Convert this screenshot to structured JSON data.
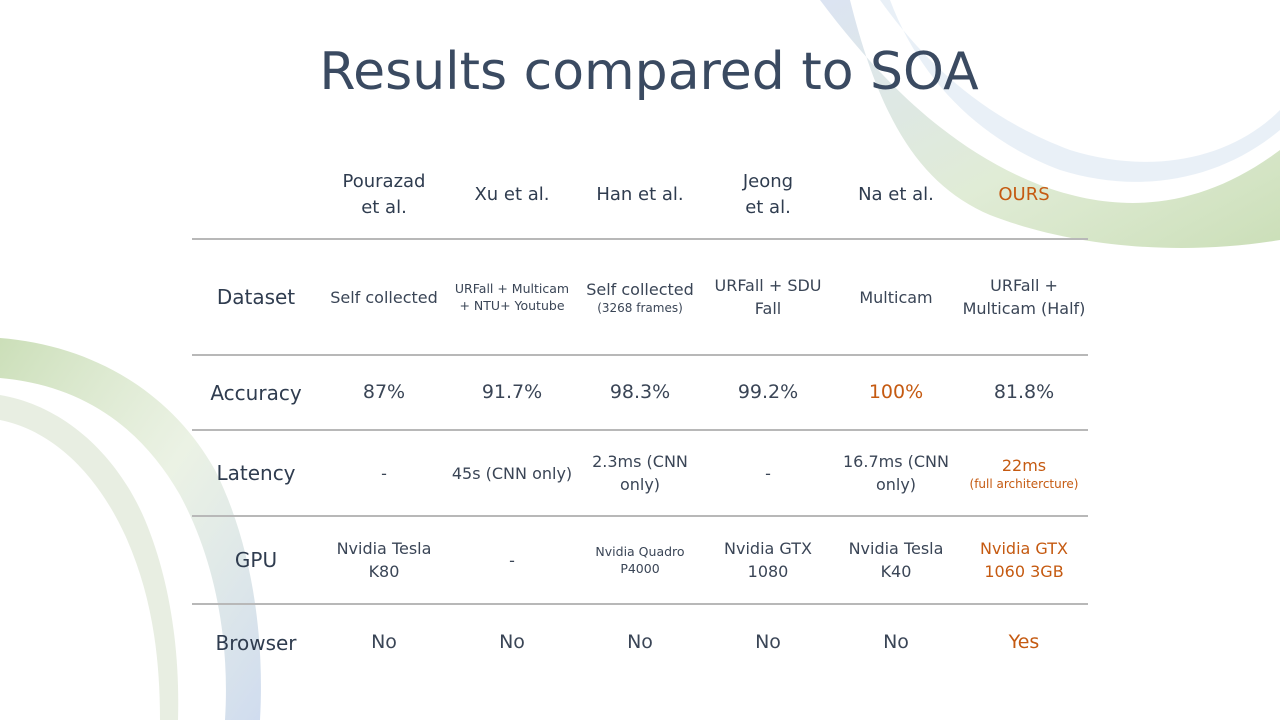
{
  "slide": {
    "title": "Results compared to SOA"
  },
  "table": {
    "columns": [
      {
        "line1": "Pourazad",
        "line2": "et al."
      },
      {
        "line1": "Xu et al.",
        "line2": ""
      },
      {
        "line1": "Han et al.",
        "line2": ""
      },
      {
        "line1": "Jeong",
        "line2": "et al."
      },
      {
        "line1": "Na et al.",
        "line2": ""
      },
      {
        "line1": "OURS",
        "line2": ""
      }
    ],
    "rows": {
      "dataset": {
        "label": "Dataset",
        "cells": [
          "Self collected",
          "URFall + Multicam + NTU+ Youtube",
          "Self collected",
          "URFall + SDU Fall",
          "Multicam",
          "URFall + Multicam (Half)"
        ],
        "han_note": "(3268 frames)"
      },
      "accuracy": {
        "label": "Accuracy",
        "cells": [
          "87%",
          "91.7%",
          "98.3%",
          "99.2%",
          "100%",
          "81.8%"
        ]
      },
      "latency": {
        "label": "Latency",
        "cells": [
          "-",
          "45s (CNN only)",
          "2.3ms (CNN only)",
          "-",
          "16.7ms (CNN only)",
          "22ms"
        ],
        "ours_note": "(full architercture)"
      },
      "gpu": {
        "label": "GPU",
        "cells": [
          "Nvidia Tesla K80",
          "-",
          "Nvidia Quadro P4000",
          "Nvidia GTX 1080",
          "Nvidia Tesla K40",
          "Nvidia GTX 1060 3GB"
        ]
      },
      "browser": {
        "label": "Browser",
        "cells": [
          "No",
          "No",
          "No",
          "No",
          "No",
          "Yes"
        ]
      }
    }
  },
  "colors": {
    "highlight": "#c55a11",
    "text": "#2f3c4f",
    "rule": "#b8b8b8",
    "deco_green": "#a9c98a",
    "deco_blue": "#9db3d6"
  }
}
